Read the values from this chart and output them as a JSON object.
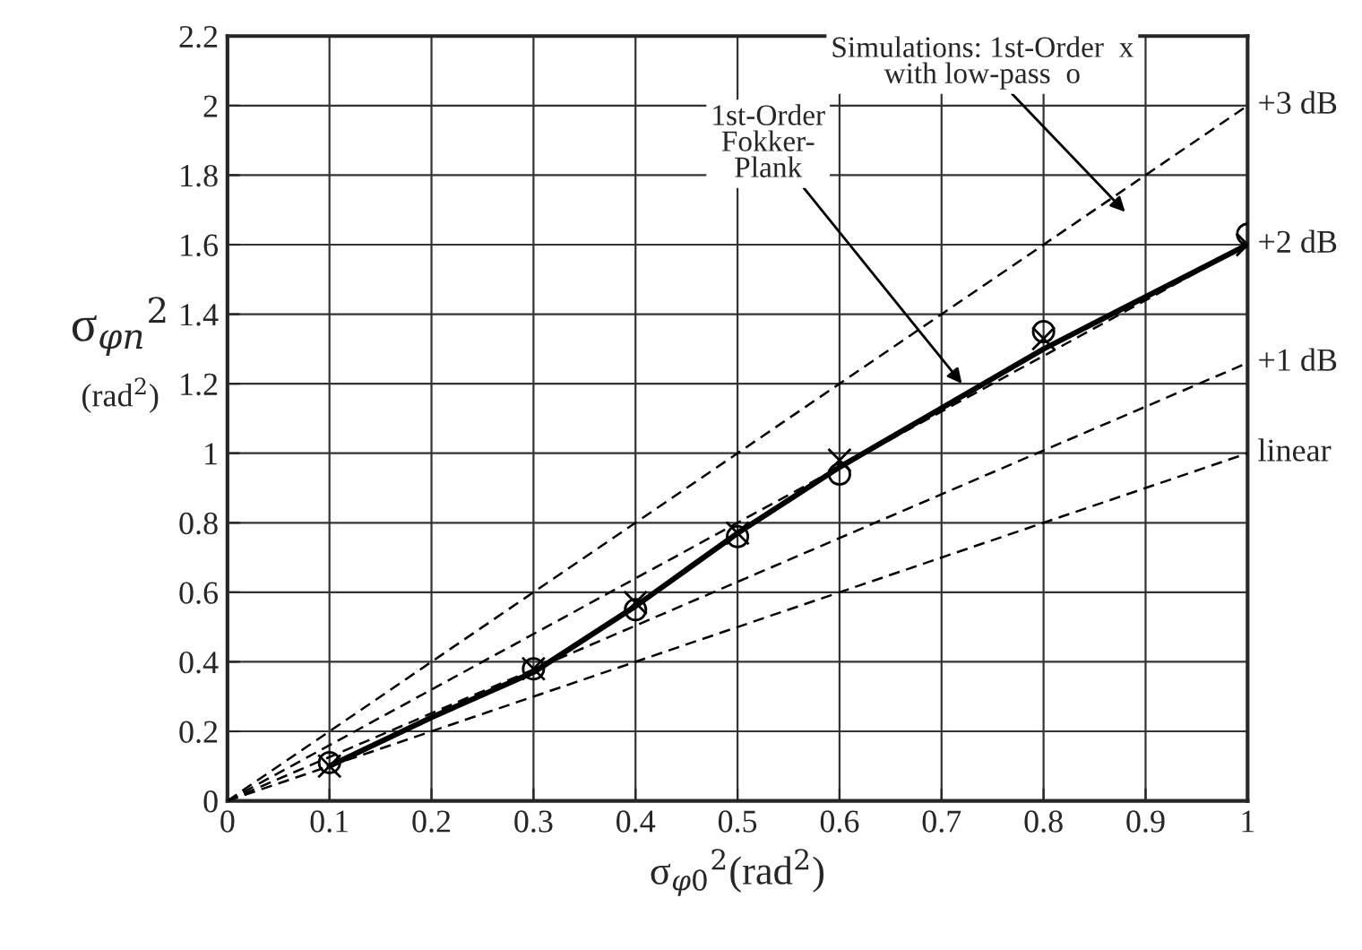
{
  "chart_data": {
    "type": "line",
    "xlabel": "σ$_{φ0}$$^{2}$(rad$^{2}$)",
    "ylabel": "σ$_{φn}$$^{2}$\n(rad$^{2}$)",
    "xlim": [
      0,
      1
    ],
    "ylim": [
      0,
      2.2
    ],
    "xticks": [
      0,
      0.1,
      0.2,
      0.3,
      0.4,
      0.5,
      0.6,
      0.7,
      0.8,
      0.9,
      1
    ],
    "yticks": [
      0,
      0.2,
      0.4,
      0.6,
      0.8,
      1,
      1.2,
      1.4,
      1.6,
      1.8,
      2,
      2.2
    ],
    "grid": true,
    "series": [
      {
        "name": "+3 dB",
        "type": "line",
        "line_style": "dashed",
        "color": "#000000",
        "x": [
          0,
          1
        ],
        "values": [
          0,
          2
        ]
      },
      {
        "name": "+2 dB",
        "type": "line",
        "line_style": "dashed",
        "color": "#000000",
        "x": [
          0,
          1
        ],
        "values": [
          0,
          1.6
        ]
      },
      {
        "name": "+1 dB",
        "type": "line",
        "line_style": "dashed",
        "color": "#000000",
        "x": [
          0,
          1
        ],
        "values": [
          0,
          1.26
        ]
      },
      {
        "name": "linear",
        "type": "line",
        "line_style": "dashed",
        "color": "#000000",
        "x": [
          0,
          1
        ],
        "values": [
          0,
          1
        ]
      },
      {
        "line_style": "solid",
        "color": "#000000",
        "x": [
          0.1,
          0.2,
          0.3,
          0.4,
          0.5,
          0.6,
          0.7,
          0.8,
          0.9,
          1
        ],
        "values": [
          0.1,
          0.24,
          0.37,
          0.56,
          0.77,
          0.96,
          1.13,
          1.3,
          1.45,
          1.6
        ]
      },
      {
        "type": "scatter",
        "marker": "cross",
        "color": "#000000",
        "x": [
          0.1,
          0.3,
          0.4,
          0.5,
          0.6,
          0.8,
          1
        ],
        "values": [
          0.1,
          0.38,
          0.57,
          0.77,
          0.98,
          1.33,
          1.6
        ]
      },
      {
        "type": "scatter",
        "marker": "circle",
        "color": "#000000",
        "x": [
          0.1,
          0.3,
          0.4,
          0.5,
          0.6,
          0.8,
          1
        ],
        "values": [
          0.11,
          0.38,
          0.55,
          0.76,
          0.94,
          1.35,
          1.63
        ]
      }
    ],
    "annotations": [
      {
        "text": "1st-Order\nFokker-\nPlank",
        "x": 0.72,
        "y": 1.2
      },
      "Simulations: 1st-Order  x\nwith low-pass  o"
    ]
  }
}
